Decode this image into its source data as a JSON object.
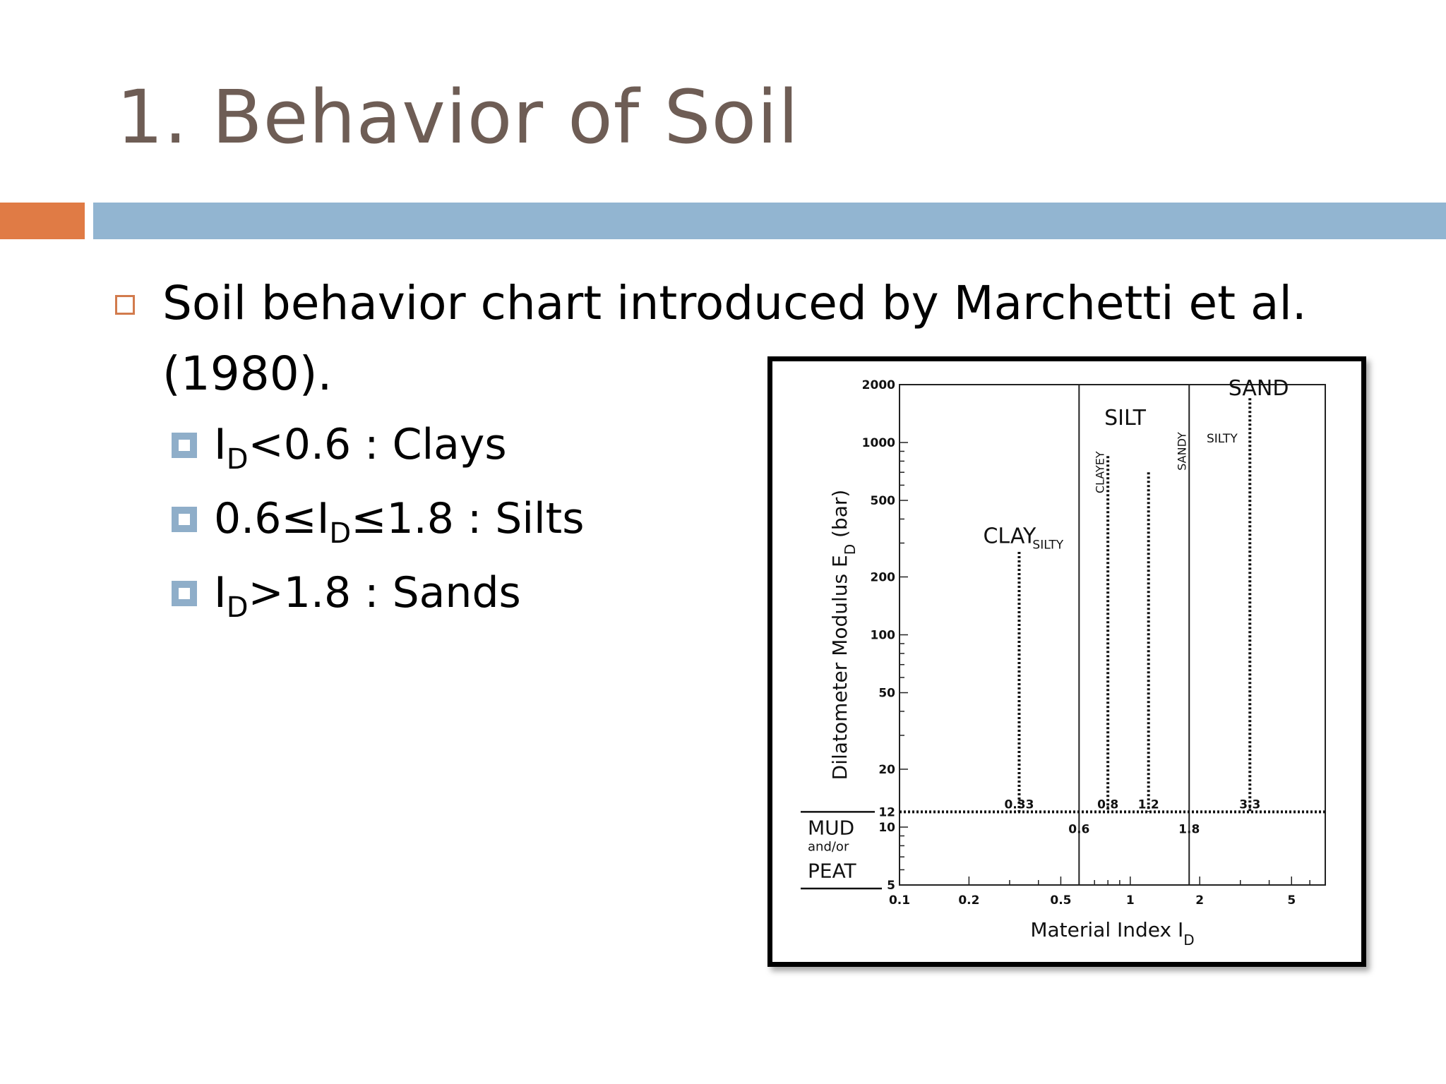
{
  "slide": {
    "title": "1. Behavior of Soil",
    "bullet": "Soil behavior chart introduced by Marchetti et al. (1980).",
    "sub_bullets": [
      {
        "pre": "I",
        "sub": "D",
        "post": "<0.6 : Clays"
      },
      {
        "pre": "0.6≤I",
        "sub": "D",
        "post": "≤1.8 : Silts"
      },
      {
        "pre": "I",
        "sub": "D",
        "post": ">1.8 : Sands"
      }
    ]
  },
  "colors": {
    "title": "#6e5d55",
    "accent_orange": "#e07b45",
    "accent_blue": "#92b5d1"
  },
  "chart_data": {
    "type": "line",
    "x_scale": "log",
    "y_scale": "log",
    "xlabel": {
      "main": "Material Index I",
      "sub": "D"
    },
    "ylabel": {
      "main": "Dilatometer Modulus E",
      "sub": "D",
      "tail": " (bar)"
    },
    "xlim": [
      0.1,
      7
    ],
    "ylim": [
      5,
      2000
    ],
    "x_tick_labels": [
      {
        "value": 0.1,
        "label": "0.1"
      },
      {
        "value": 0.2,
        "label": "0.2"
      },
      {
        "value": 0.5,
        "label": "0.5"
      },
      {
        "value": 1,
        "label": "1"
      },
      {
        "value": 2,
        "label": "2"
      },
      {
        "value": 5,
        "label": "5"
      }
    ],
    "y_tick_labels": [
      {
        "value": 5,
        "label": "5"
      },
      {
        "value": 10,
        "label": "10"
      },
      {
        "value": 12,
        "label": "12"
      },
      {
        "value": 20,
        "label": "20"
      },
      {
        "value": 50,
        "label": "50"
      },
      {
        "value": 100,
        "label": "100"
      },
      {
        "value": 200,
        "label": "200"
      },
      {
        "value": 500,
        "label": "500"
      },
      {
        "value": 1000,
        "label": "1000"
      },
      {
        "value": 2000,
        "label": "2000"
      }
    ],
    "boundaries": [
      {
        "x": 0.6,
        "label": "0.6"
      },
      {
        "x": 1.8,
        "label": "1.8"
      }
    ],
    "subdivisions": [
      {
        "x": 0.33,
        "label": "0.33",
        "y_top": 270
      },
      {
        "x": 0.8,
        "label": "0.8",
        "y_top": 850
      },
      {
        "x": 1.2,
        "label": "1.2",
        "y_top": 700
      },
      {
        "x": 3.3,
        "label": "3.3",
        "y_top": 1700
      }
    ],
    "mud_threshold": {
      "y": 12
    },
    "zones": [
      {
        "label": "CLAY",
        "x": 0.3,
        "y": 340
      },
      {
        "label": "SILT",
        "x": 0.95,
        "y": 1400
      },
      {
        "label": "SAND",
        "x": 3.6,
        "y": 2000
      }
    ],
    "subzones": [
      {
        "label": "SILTY",
        "x": 0.44,
        "y": 280,
        "rotate": false
      },
      {
        "label": "CLAYEY",
        "x": 0.77,
        "y": 700,
        "rotate": true
      },
      {
        "label": "SANDY",
        "x": 1.74,
        "y": 900,
        "rotate": true
      },
      {
        "label": "SILTY",
        "x": 2.5,
        "y": 1000,
        "rotate": false
      }
    ],
    "mud_label": {
      "line1": "MUD",
      "line2": "and/or",
      "line3": "PEAT"
    }
  }
}
